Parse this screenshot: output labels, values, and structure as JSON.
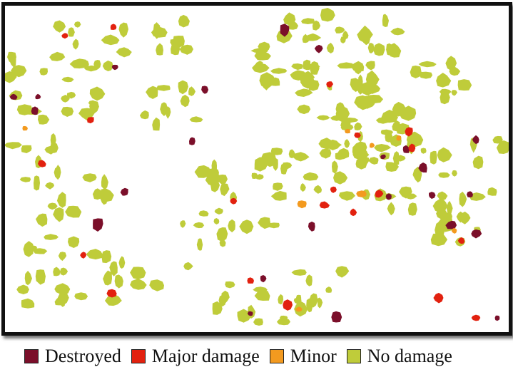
{
  "legend": {
    "items": [
      {
        "key": "destroyed",
        "label": "Destroyed",
        "color": "#7b0f2a"
      },
      {
        "key": "major",
        "label": "Major damage",
        "color": "#e2210f"
      },
      {
        "key": "minor",
        "label": "Minor",
        "color": "#f39a1f"
      },
      {
        "key": "none",
        "label": "No damage",
        "color": "#bfcc3a"
      }
    ]
  },
  "map": {
    "background": "#ffffff",
    "border_color": "#111111"
  }
}
